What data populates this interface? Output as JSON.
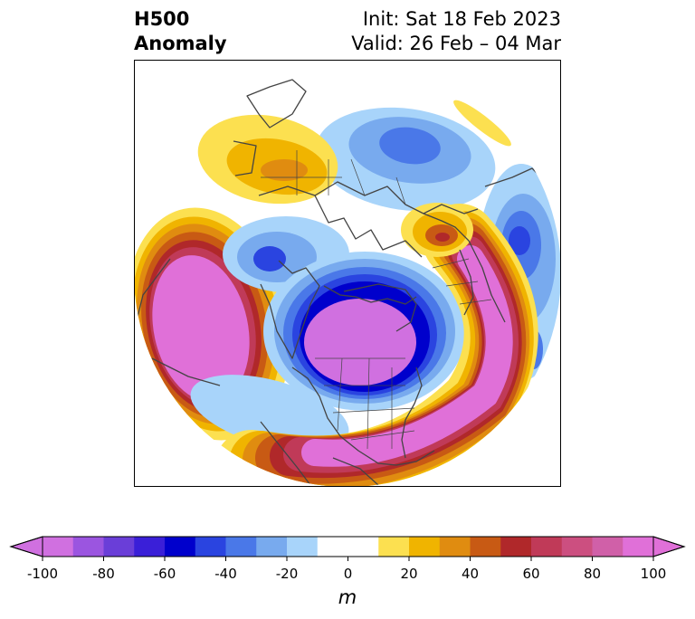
{
  "title": {
    "left_line1": "H500",
    "left_line2": "Anomaly",
    "right_line1": "Init: Sat 18 Feb 2023",
    "right_line2": "Valid: 26 Feb – 04 Mar"
  },
  "colorbar": {
    "unit": "m",
    "min": -100,
    "max": 100,
    "step": 10,
    "tick_labels": [
      "-100",
      "-80",
      "-60",
      "-40",
      "-20",
      "0",
      "20",
      "40",
      "60",
      "80",
      "100"
    ],
    "colors": [
      "#d070e0",
      "#9b55e0",
      "#6a3ed8",
      "#3a1fd8",
      "#0000cc",
      "#2a44e0",
      "#4a78e8",
      "#78aaee",
      "#a8d4fa",
      "#ffffff",
      "#ffffff",
      "#fce050",
      "#f0b400",
      "#e08c10",
      "#c85a14",
      "#b0282a",
      "#c03a58",
      "#cc4f80",
      "#d060a8",
      "#e070d8"
    ]
  },
  "map": {
    "projection": "north-polar-stereographic",
    "field": "500 hPa geopotential height anomaly",
    "anomaly_palette": {
      "neg_light": "#a8d4fa",
      "neg_mid": "#78aaee",
      "neg_strong": "#4a78e8",
      "neg_deep": "#2a44e0",
      "neg_core": "#0000cc",
      "neg_extreme": "#d070e0",
      "pos_light": "#fce050",
      "pos_mid": "#f0b400",
      "pos_strong": "#e08c10",
      "pos_deep": "#c85a14",
      "pos_red": "#b0282a",
      "pos_rose": "#c03a58",
      "pos_extreme": "#e070d8"
    },
    "coastline_color": "#444444"
  }
}
